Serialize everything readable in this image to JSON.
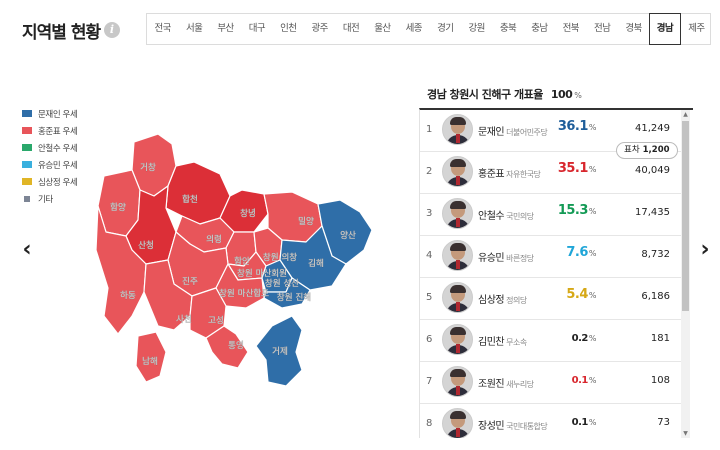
{
  "header": {
    "title": "지역별 현황",
    "info_icon": "i"
  },
  "tabs": [
    {
      "label": "전국"
    },
    {
      "label": "서울"
    },
    {
      "label": "부산"
    },
    {
      "label": "대구"
    },
    {
      "label": "인천"
    },
    {
      "label": "광주"
    },
    {
      "label": "대전"
    },
    {
      "label": "울산"
    },
    {
      "label": "세종"
    },
    {
      "label": "경기"
    },
    {
      "label": "강원"
    },
    {
      "label": "충북"
    },
    {
      "label": "충남"
    },
    {
      "label": "전북"
    },
    {
      "label": "전남"
    },
    {
      "label": "경북"
    },
    {
      "label": "경남"
    },
    {
      "label": "제주"
    }
  ],
  "active_tab": "경남",
  "nav": {
    "prev_icon": "chevron-left-icon",
    "next_icon": "chevron-right-icon",
    "prev": "‹",
    "next": "›"
  },
  "legend": [
    {
      "label": "문재인 우세",
      "color": "#2f6ea8"
    },
    {
      "label": "홍준표 우세",
      "color": "#e8555a"
    },
    {
      "label": "안철수 우세",
      "color": "#2aa86b"
    },
    {
      "label": "유승민 우세",
      "color": "#3ab0de"
    },
    {
      "label": "심상정 우세",
      "color": "#e0b526"
    },
    {
      "label": "기타",
      "color": "#7d8595"
    }
  ],
  "map": {
    "labels": {
      "geochang": "거창",
      "hapcheon": "합천",
      "changnyeong": "창녕",
      "miryang": "밀양",
      "yangsan": "양산",
      "hamyang": "함양",
      "sancheong": "산청",
      "uiryeong": "의령",
      "haman": "함안",
      "changwon_uichang": "창원 의창",
      "changwon_masanhoewon": "창원 마산회원",
      "gimhae": "김해",
      "jinju": "진주",
      "changwon_seongsan": "창원 성산",
      "changwon_masanhappo": "창원 마산합포",
      "changwon_jinhae": "창원 진해",
      "hadong": "하동",
      "sacheon": "사천",
      "goseong": "고성",
      "tongyeong": "통영",
      "geoje": "거제",
      "namhae": "남해"
    }
  },
  "results": {
    "title": "경남 창원시 진해구 개표율",
    "rate": "100",
    "rate_unit": "%",
    "diff_label": "표차",
    "diff_value": "1,200",
    "candidates": [
      {
        "rank": "1",
        "name": "문재인",
        "party": "더불어민주당",
        "pct": "36.1",
        "votes": "41,249",
        "color": "#1f5e9a"
      },
      {
        "rank": "2",
        "name": "홍준표",
        "party": "자유한국당",
        "pct": "35.1",
        "votes": "40,049",
        "color": "#d8262d"
      },
      {
        "rank": "3",
        "name": "안철수",
        "party": "국민의당",
        "pct": "15.3",
        "votes": "17,435",
        "color": "#139a55"
      },
      {
        "rank": "4",
        "name": "유승민",
        "party": "바른정당",
        "pct": "7.6",
        "votes": "8,732",
        "color": "#20a6d8"
      },
      {
        "rank": "5",
        "name": "심상정",
        "party": "정의당",
        "pct": "5.4",
        "votes": "6,186",
        "color": "#d6a816"
      },
      {
        "rank": "6",
        "name": "김민찬",
        "party": "무소속",
        "pct": "0.2",
        "votes": "181",
        "color": "#222222"
      },
      {
        "rank": "7",
        "name": "조원진",
        "party": "새누리당",
        "pct": "0.1",
        "votes": "108",
        "color": "#d8262d"
      },
      {
        "rank": "8",
        "name": "장성민",
        "party": "국민대통합당",
        "pct": "0.1",
        "votes": "73",
        "color": "#222222"
      }
    ],
    "pct_unit": "%"
  }
}
